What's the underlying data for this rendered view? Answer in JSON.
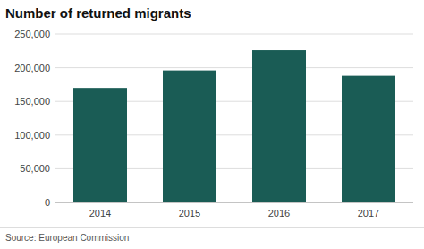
{
  "chart_data": {
    "type": "bar",
    "title": "Number of returned migrants",
    "categories": [
      "2014",
      "2015",
      "2016",
      "2017"
    ],
    "values": [
      170000,
      196000,
      226000,
      188000
    ],
    "color": "#1a5c55",
    "ylim": [
      0,
      250000
    ],
    "yticks": [
      0,
      {
        "value": 50000,
        "label": "50,000"
      },
      {
        "value": 100000,
        "label": "100,000"
      },
      {
        "value": 150000,
        "label": "150,000"
      },
      {
        "value": 200000,
        "label": "200,000"
      },
      {
        "value": 250000,
        "label": "250,000"
      }
    ],
    "grid": true,
    "source": "Source: European Commission"
  }
}
